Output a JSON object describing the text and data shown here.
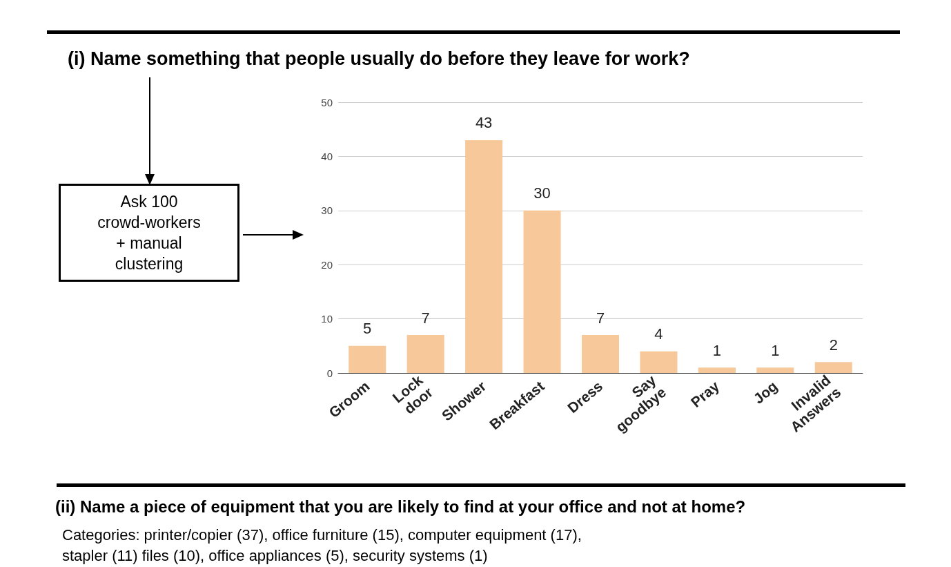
{
  "chart_data": {
    "type": "bar",
    "title": "(i) Name something that people usually do before they leave for work?",
    "categories": [
      "Groom",
      "Lock door",
      "Shower",
      "Breakfast",
      "Dress",
      "Say goodbye",
      "Pray",
      "Jog",
      "Invalid Answers"
    ],
    "values": [
      5,
      7,
      43,
      30,
      7,
      4,
      1,
      1,
      2
    ],
    "color": "#f6c89a",
    "ylim": [
      0,
      50
    ],
    "yticks": [
      0,
      10,
      20,
      30,
      40,
      50
    ],
    "grid": "y",
    "data_labels": true,
    "annotations": [
      "Ask 100 crowd-workers + manual clustering",
      "(ii) Name a piece of equipment that you are likely to find at your office and not at home?",
      "Categories: printer/copier (37), office furniture (15), computer equipment (17), stapler (11) files (10), office appliances (5), security systems (1)"
    ]
  }
}
